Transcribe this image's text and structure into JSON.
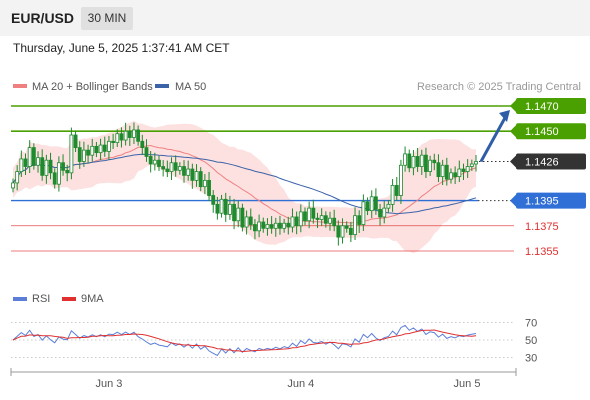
{
  "header": {
    "symbol": "EUR/USD",
    "interval": "30 MIN",
    "datetime": "Thursday, June 5, 2025 1:37:41 AM CET"
  },
  "colors": {
    "green": "#4aa000",
    "blue": "#2f6fd6",
    "red": "#e03030",
    "ma20": "#f08080",
    "band_fill": "#fde0e0",
    "ma50": "#3a63a8",
    "candle": "#1f8a2e",
    "rsi": "#5b7fd8",
    "rsi_ma": "#e03030",
    "price_tag": "#333333",
    "arrow": "#2e5ea8"
  },
  "legend": {
    "ma20_label": "MA 20 + Bollinger Bands",
    "ma50_label": "MA 50",
    "research": "Research © 2025 Trading Central"
  },
  "rsi_legend": {
    "rsi_label": "RSI",
    "ma_label": "9MA"
  },
  "chart_data": {
    "type": "candlestick",
    "instrument": "EUR/USD",
    "timeframe": "30 MIN",
    "x_labels": [
      "Jun 3",
      "Jun 4",
      "Jun 5"
    ],
    "levels": [
      {
        "value": 1.147,
        "label": "1.1470",
        "kind": "target",
        "color": "#4aa000"
      },
      {
        "value": 1.145,
        "label": "1.1450",
        "kind": "resistance",
        "color": "#4aa000"
      },
      {
        "value": 1.1426,
        "label": "1.1426",
        "kind": "last_price",
        "color": "#333333"
      },
      {
        "value": 1.1395,
        "label": "1.1395",
        "kind": "pivot",
        "color": "#2f6fd6"
      },
      {
        "value": 1.1375,
        "label": "1.1375",
        "kind": "support",
        "color": "#e03030"
      },
      {
        "value": 1.1355,
        "label": "1.1355",
        "kind": "support",
        "color": "#e03030"
      }
    ],
    "close": [
      1.1409,
      1.1418,
      1.1428,
      1.1422,
      1.1437,
      1.1423,
      1.1429,
      1.1415,
      1.1427,
      1.1417,
      1.1408,
      1.1425,
      1.1419,
      1.1417,
      1.1447,
      1.1437,
      1.1426,
      1.1435,
      1.1431,
      1.1438,
      1.1433,
      1.1439,
      1.1434,
      1.1442,
      1.1441,
      1.1448,
      1.1443,
      1.145,
      1.1445,
      1.1451,
      1.1442,
      1.1437,
      1.143,
      1.1424,
      1.1427,
      1.1422,
      1.142,
      1.1418,
      1.1425,
      1.1419,
      1.1422,
      1.1415,
      1.142,
      1.1411,
      1.1418,
      1.1406,
      1.1411,
      1.1399,
      1.1392,
      1.1385,
      1.1396,
      1.1384,
      1.1392,
      1.1379,
      1.1389,
      1.1374,
      1.1382,
      1.1376,
      1.1371,
      1.1378,
      1.1373,
      1.1376,
      1.1373,
      1.1377,
      1.1373,
      1.1377,
      1.1374,
      1.1382,
      1.1375,
      1.1386,
      1.1379,
      1.1389,
      1.1381,
      1.138,
      1.1383,
      1.1377,
      1.1381,
      1.1375,
      1.1366,
      1.1375,
      1.1373,
      1.1368,
      1.1383,
      1.1376,
      1.1394,
      1.1387,
      1.1398,
      1.1388,
      1.1382,
      1.1389,
      1.1392,
      1.1407,
      1.1399,
      1.1423,
      1.1432,
      1.1421,
      1.143,
      1.1422,
      1.1431,
      1.1418,
      1.1427,
      1.1425,
      1.1414,
      1.1423,
      1.1412,
      1.1417,
      1.1414,
      1.142,
      1.1418,
      1.1422,
      1.1424,
      1.1426
    ],
    "rsi": {
      "ticks": [
        70,
        50,
        30
      ],
      "ylim": [
        18,
        82
      ],
      "last_value": 61
    }
  }
}
